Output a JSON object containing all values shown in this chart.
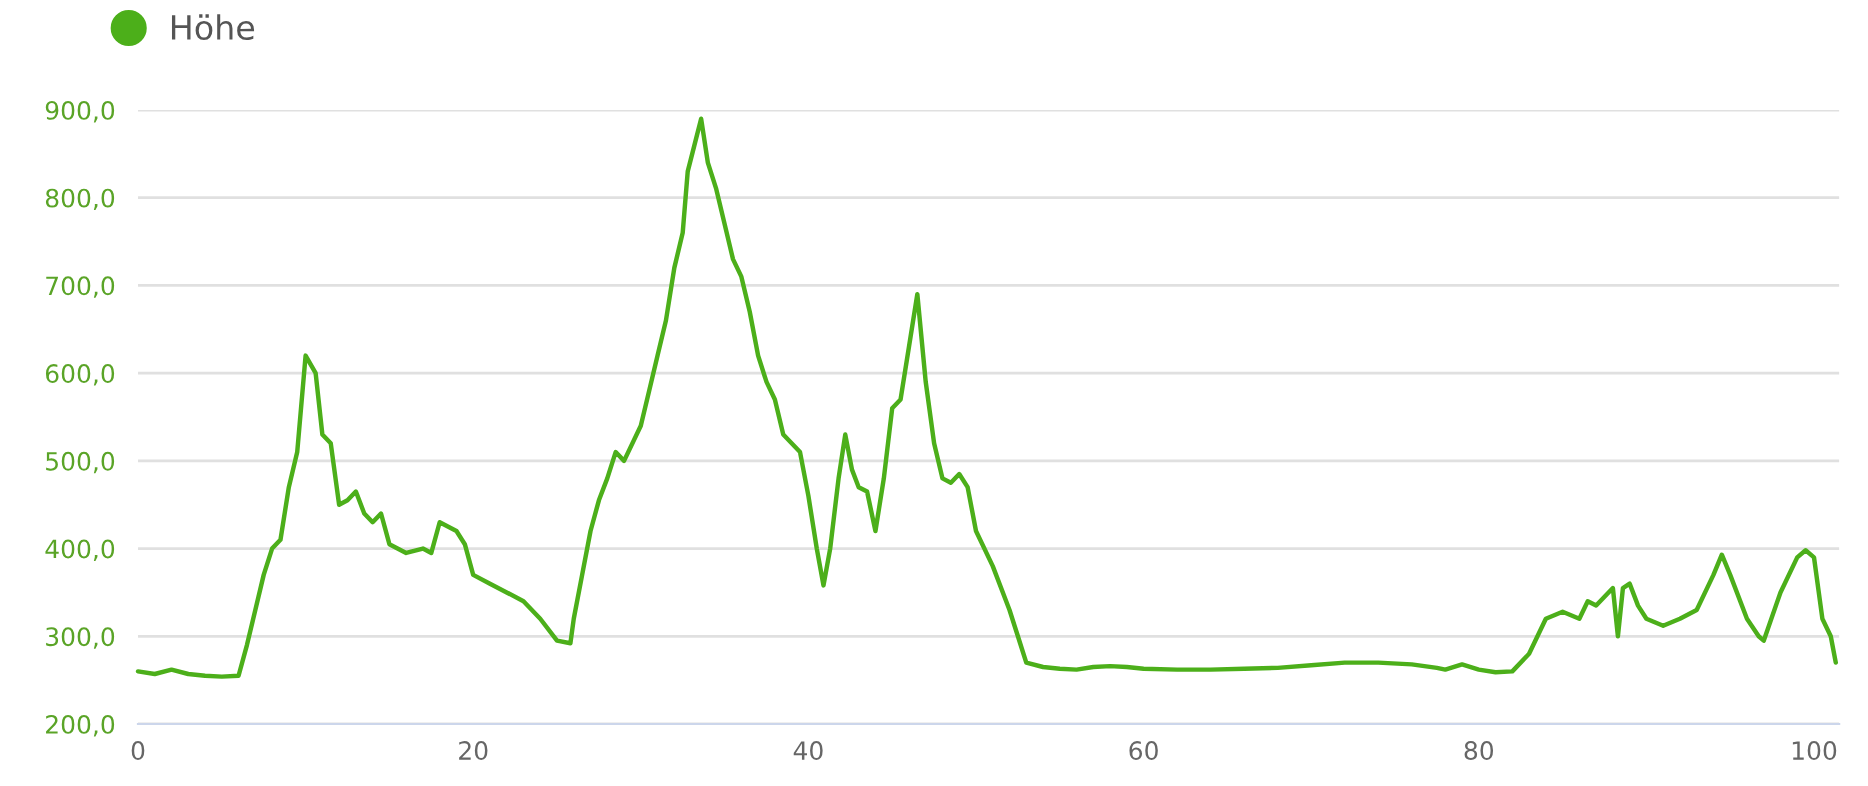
{
  "chart_data": {
    "type": "line",
    "legend": "top left",
    "grid": "y",
    "marker": "none",
    "line_style": "solid",
    "xlim": [
      0,
      101.5
    ],
    "ylim": [
      200,
      900
    ],
    "xticks": [
      0,
      20,
      40,
      60,
      80,
      100
    ],
    "yticks": [
      {
        "value": 200,
        "label": "200,0"
      },
      {
        "value": 300,
        "label": "300,0"
      },
      {
        "value": 400,
        "label": "400,0"
      },
      {
        "value": 500,
        "label": "500,0"
      },
      {
        "value": 600,
        "label": "600,0"
      },
      {
        "value": 700,
        "label": "700,0"
      },
      {
        "value": 800,
        "label": "800,0"
      },
      {
        "value": 900,
        "label": "900,0"
      }
    ],
    "x": [
      0,
      1,
      2,
      3,
      4,
      5,
      6,
      6.5,
      7,
      7.5,
      8,
      8.5,
      9,
      9.5,
      10,
      10.3,
      10.6,
      11,
      11.5,
      12,
      12.5,
      13,
      13.5,
      14,
      14.5,
      15,
      16,
      17,
      17.5,
      18,
      19,
      19.5,
      20,
      21,
      22,
      23,
      24,
      25,
      25.8,
      26,
      26.5,
      27,
      27.5,
      28,
      28.5,
      29,
      30,
      30.5,
      31,
      31.5,
      32,
      32.5,
      32.8,
      33.2,
      33.6,
      34,
      34.5,
      35,
      35.5,
      36,
      36.5,
      37,
      37.5,
      38,
      38.5,
      39,
      39.5,
      40,
      40.5,
      40.9,
      41.3,
      41.8,
      42.2,
      42.6,
      43,
      43.5,
      44,
      44.5,
      45,
      45.5,
      46,
      46.5,
      47,
      47.5,
      48,
      48.5,
      49,
      49.5,
      50,
      51,
      52,
      52.5,
      53,
      54,
      55,
      56,
      57,
      58,
      59,
      60,
      62,
      64,
      66,
      68,
      70,
      72,
      74,
      76,
      77.5,
      78,
      79,
      80,
      81,
      82,
      83,
      84,
      85,
      86,
      86.5,
      87,
      87.5,
      88,
      88.3,
      88.6,
      89,
      89.5,
      90,
      91,
      92,
      93,
      94,
      94.5,
      95,
      96,
      96.7,
      97,
      98,
      99,
      99.5,
      100,
      100.5,
      101,
      101.3
    ],
    "series": [
      {
        "name": "Höhe",
        "color": "#4caf1a",
        "values": [
          260,
          257,
          262,
          257,
          255,
          254,
          255,
          290,
          330,
          370,
          400,
          410,
          470,
          510,
          620,
          610,
          600,
          530,
          520,
          450,
          455,
          465,
          440,
          430,
          440,
          405,
          395,
          400,
          395,
          430,
          420,
          405,
          370,
          360,
          350,
          340,
          320,
          295,
          292,
          320,
          370,
          420,
          455,
          480,
          510,
          500,
          540,
          580,
          620,
          660,
          720,
          760,
          830,
          860,
          890,
          840,
          810,
          770,
          730,
          710,
          670,
          620,
          590,
          570,
          530,
          520,
          510,
          460,
          400,
          358,
          400,
          480,
          530,
          490,
          470,
          465,
          420,
          480,
          560,
          570,
          630,
          690,
          590,
          520,
          480,
          475,
          485,
          470,
          420,
          380,
          330,
          300,
          270,
          265,
          263,
          262,
          265,
          266,
          265,
          263,
          262,
          262,
          263,
          264,
          267,
          270,
          270,
          268,
          264,
          262,
          268,
          262,
          259,
          260,
          280,
          320,
          328,
          320,
          340,
          335,
          345,
          355,
          300,
          355,
          360,
          335,
          320,
          312,
          320,
          330,
          370,
          393,
          370,
          320,
          300,
          295,
          350,
          390,
          398,
          390,
          320,
          300,
          270
        ]
      }
    ]
  }
}
